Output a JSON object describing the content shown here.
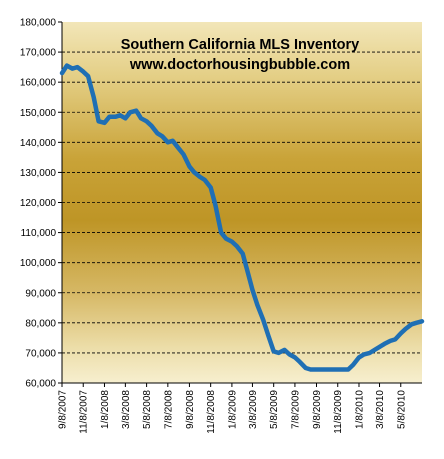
{
  "chart_data": {
    "type": "line",
    "title": "Southern California  MLS Inventory",
    "subtitle": "www.doctorhousingbubble.com",
    "xlabel": "",
    "ylabel": "",
    "ylim": [
      60000,
      180000
    ],
    "yticks": [
      60000,
      70000,
      80000,
      90000,
      100000,
      110000,
      120000,
      130000,
      140000,
      150000,
      160000,
      170000,
      180000
    ],
    "ytick_labels": [
      "60,000",
      "70,000",
      "80,000",
      "90,000",
      "100,000",
      "110,000",
      "120,000",
      "130,000",
      "140,000",
      "150,000",
      "160,000",
      "170,000",
      "180,000"
    ],
    "xtick_labels": [
      "9/8/2007",
      "11/8/2007",
      "1/8/2008",
      "3/8/2008",
      "5/8/2008",
      "7/8/2008",
      "9/8/2008",
      "11/8/2008",
      "1/8/2009",
      "3/8/2009",
      "5/8/2009",
      "7/8/2009",
      "9/8/2009",
      "11/8/2009",
      "1/8/2010",
      "3/8/2010",
      "5/8/2010"
    ],
    "grid": true,
    "line_color": "#1F6FB4",
    "series": [
      {
        "name": "",
        "x": [
          "9/8/2007",
          "9/22/2007",
          "10/8/2007",
          "10/22/2007",
          "11/8/2007",
          "11/22/2007",
          "12/8/2007",
          "12/22/2007",
          "1/8/2008",
          "1/22/2008",
          "2/8/2008",
          "2/22/2008",
          "3/8/2008",
          "3/22/2008",
          "4/8/2008",
          "4/22/2008",
          "5/8/2008",
          "5/22/2008",
          "6/8/2008",
          "6/22/2008",
          "7/8/2008",
          "7/22/2008",
          "8/8/2008",
          "8/22/2008",
          "9/8/2008",
          "9/22/2008",
          "10/8/2008",
          "10/22/2008",
          "11/8/2008",
          "11/22/2008",
          "12/8/2008",
          "12/22/2008",
          "1/8/2009",
          "1/22/2009",
          "2/8/2009",
          "2/22/2009",
          "3/8/2009",
          "3/22/2009",
          "4/8/2009",
          "4/22/2009",
          "5/8/2009",
          "5/22/2009",
          "6/8/2009",
          "6/22/2009",
          "7/8/2009",
          "7/22/2009",
          "8/8/2009",
          "8/22/2009",
          "9/8/2009",
          "9/22/2009",
          "10/8/2009",
          "10/22/2009",
          "11/8/2009",
          "11/22/2009",
          "12/8/2009",
          "12/22/2009",
          "1/8/2010",
          "1/22/2010",
          "2/8/2010",
          "2/22/2010",
          "3/8/2010",
          "3/22/2010",
          "4/8/2010",
          "4/22/2010",
          "5/8/2010",
          "5/22/2010",
          "6/8/2010",
          "6/22/2010",
          "7/8/2010"
        ],
        "values": [
          163000,
          165500,
          164500,
          165000,
          163500,
          162000,
          155000,
          147000,
          146500,
          148500,
          148500,
          149000,
          148000,
          150000,
          150500,
          148000,
          147000,
          145500,
          143000,
          142000,
          140000,
          140500,
          138000,
          136000,
          132000,
          130000,
          128500,
          127500,
          125000,
          119000,
          110000,
          108000,
          107000,
          105500,
          103000,
          97000,
          91000,
          86000,
          81000,
          76000,
          70500,
          70000,
          71000,
          69500,
          68500,
          67000,
          65000,
          64500,
          64500,
          64500,
          64500,
          64500,
          64500,
          64500,
          64500,
          66000,
          68500,
          69500,
          70000,
          71000,
          72000,
          73000,
          74000,
          74500,
          76500,
          78000,
          79500,
          80000,
          80500
        ]
      }
    ]
  }
}
